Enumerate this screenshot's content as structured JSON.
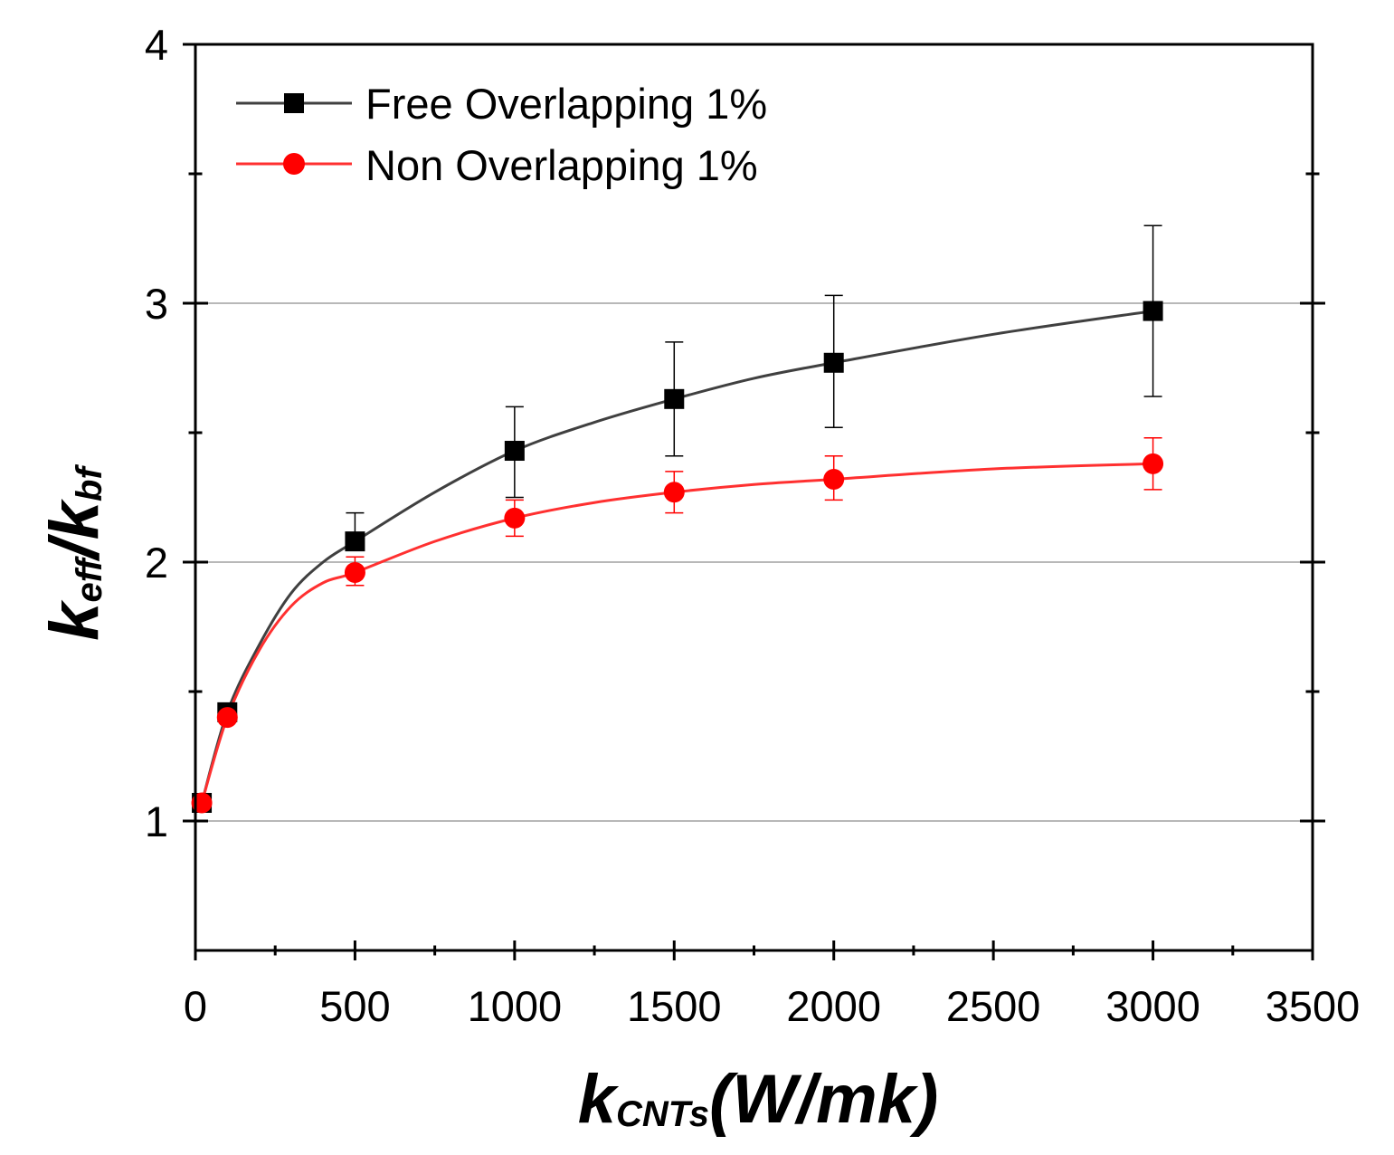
{
  "chart_data": {
    "type": "line",
    "title": "",
    "xlabel": {
      "main": "k",
      "sub": "CNTs",
      "tail": "(W/mk)"
    },
    "ylabel": {
      "part1": "k",
      "sub1": "eff",
      "slash": "/",
      "part2": "k",
      "sub2": "bf"
    },
    "xlim": [
      0,
      3500
    ],
    "ylim": [
      0.5,
      4
    ],
    "x_ticks": [
      0,
      500,
      1000,
      1500,
      2000,
      2500,
      3000,
      3500
    ],
    "x_tick_labels": [
      "0",
      "500",
      "1000",
      "1500",
      "2000",
      "2500",
      "3000",
      "3500"
    ],
    "y_ticks": [
      1,
      2,
      3,
      4
    ],
    "y_tick_labels": [
      "1",
      "2",
      "3",
      "4"
    ],
    "y_gridlines": [
      1,
      2,
      3
    ],
    "legend_position": "top-left",
    "series": [
      {
        "name": "Free Overlapping 1%",
        "color": "#000000",
        "line_color": "#404040",
        "marker": "square",
        "x": [
          20,
          100,
          500,
          1000,
          1500,
          2000,
          3000
        ],
        "y": [
          1.07,
          1.42,
          2.08,
          2.43,
          2.63,
          2.77,
          2.97
        ],
        "err_upper": [
          null,
          null,
          2.19,
          2.6,
          2.85,
          3.03,
          3.3
        ],
        "err_lower": [
          null,
          null,
          null,
          2.25,
          2.41,
          2.52,
          2.64
        ]
      },
      {
        "name": "Non Overlapping 1%",
        "color": "#ff0000",
        "line_color": "#ff3030",
        "marker": "circle",
        "x": [
          20,
          100,
          500,
          1000,
          1500,
          2000,
          3000
        ],
        "y": [
          1.07,
          1.4,
          1.96,
          2.17,
          2.27,
          2.32,
          2.38
        ],
        "err_upper": [
          null,
          null,
          2.02,
          2.24,
          2.35,
          2.41,
          2.48
        ],
        "err_lower": [
          null,
          null,
          1.91,
          2.1,
          2.19,
          2.24,
          2.28
        ]
      }
    ],
    "fit_curves": [
      {
        "series": "Free Overlapping 1%",
        "x": [
          20,
          100,
          200,
          300,
          400,
          500,
          750,
          1000,
          1250,
          1500,
          1750,
          2000,
          2500,
          3000
        ],
        "y": [
          1.07,
          1.42,
          1.68,
          1.88,
          2.0,
          2.08,
          2.27,
          2.43,
          2.54,
          2.63,
          2.71,
          2.77,
          2.88,
          2.97
        ]
      },
      {
        "series": "Non Overlapping 1%",
        "x": [
          20,
          100,
          200,
          300,
          400,
          500,
          750,
          1000,
          1250,
          1500,
          1750,
          2000,
          2500,
          3000
        ],
        "y": [
          1.07,
          1.4,
          1.66,
          1.83,
          1.92,
          1.96,
          2.08,
          2.17,
          2.23,
          2.27,
          2.3,
          2.32,
          2.36,
          2.38
        ]
      }
    ]
  }
}
